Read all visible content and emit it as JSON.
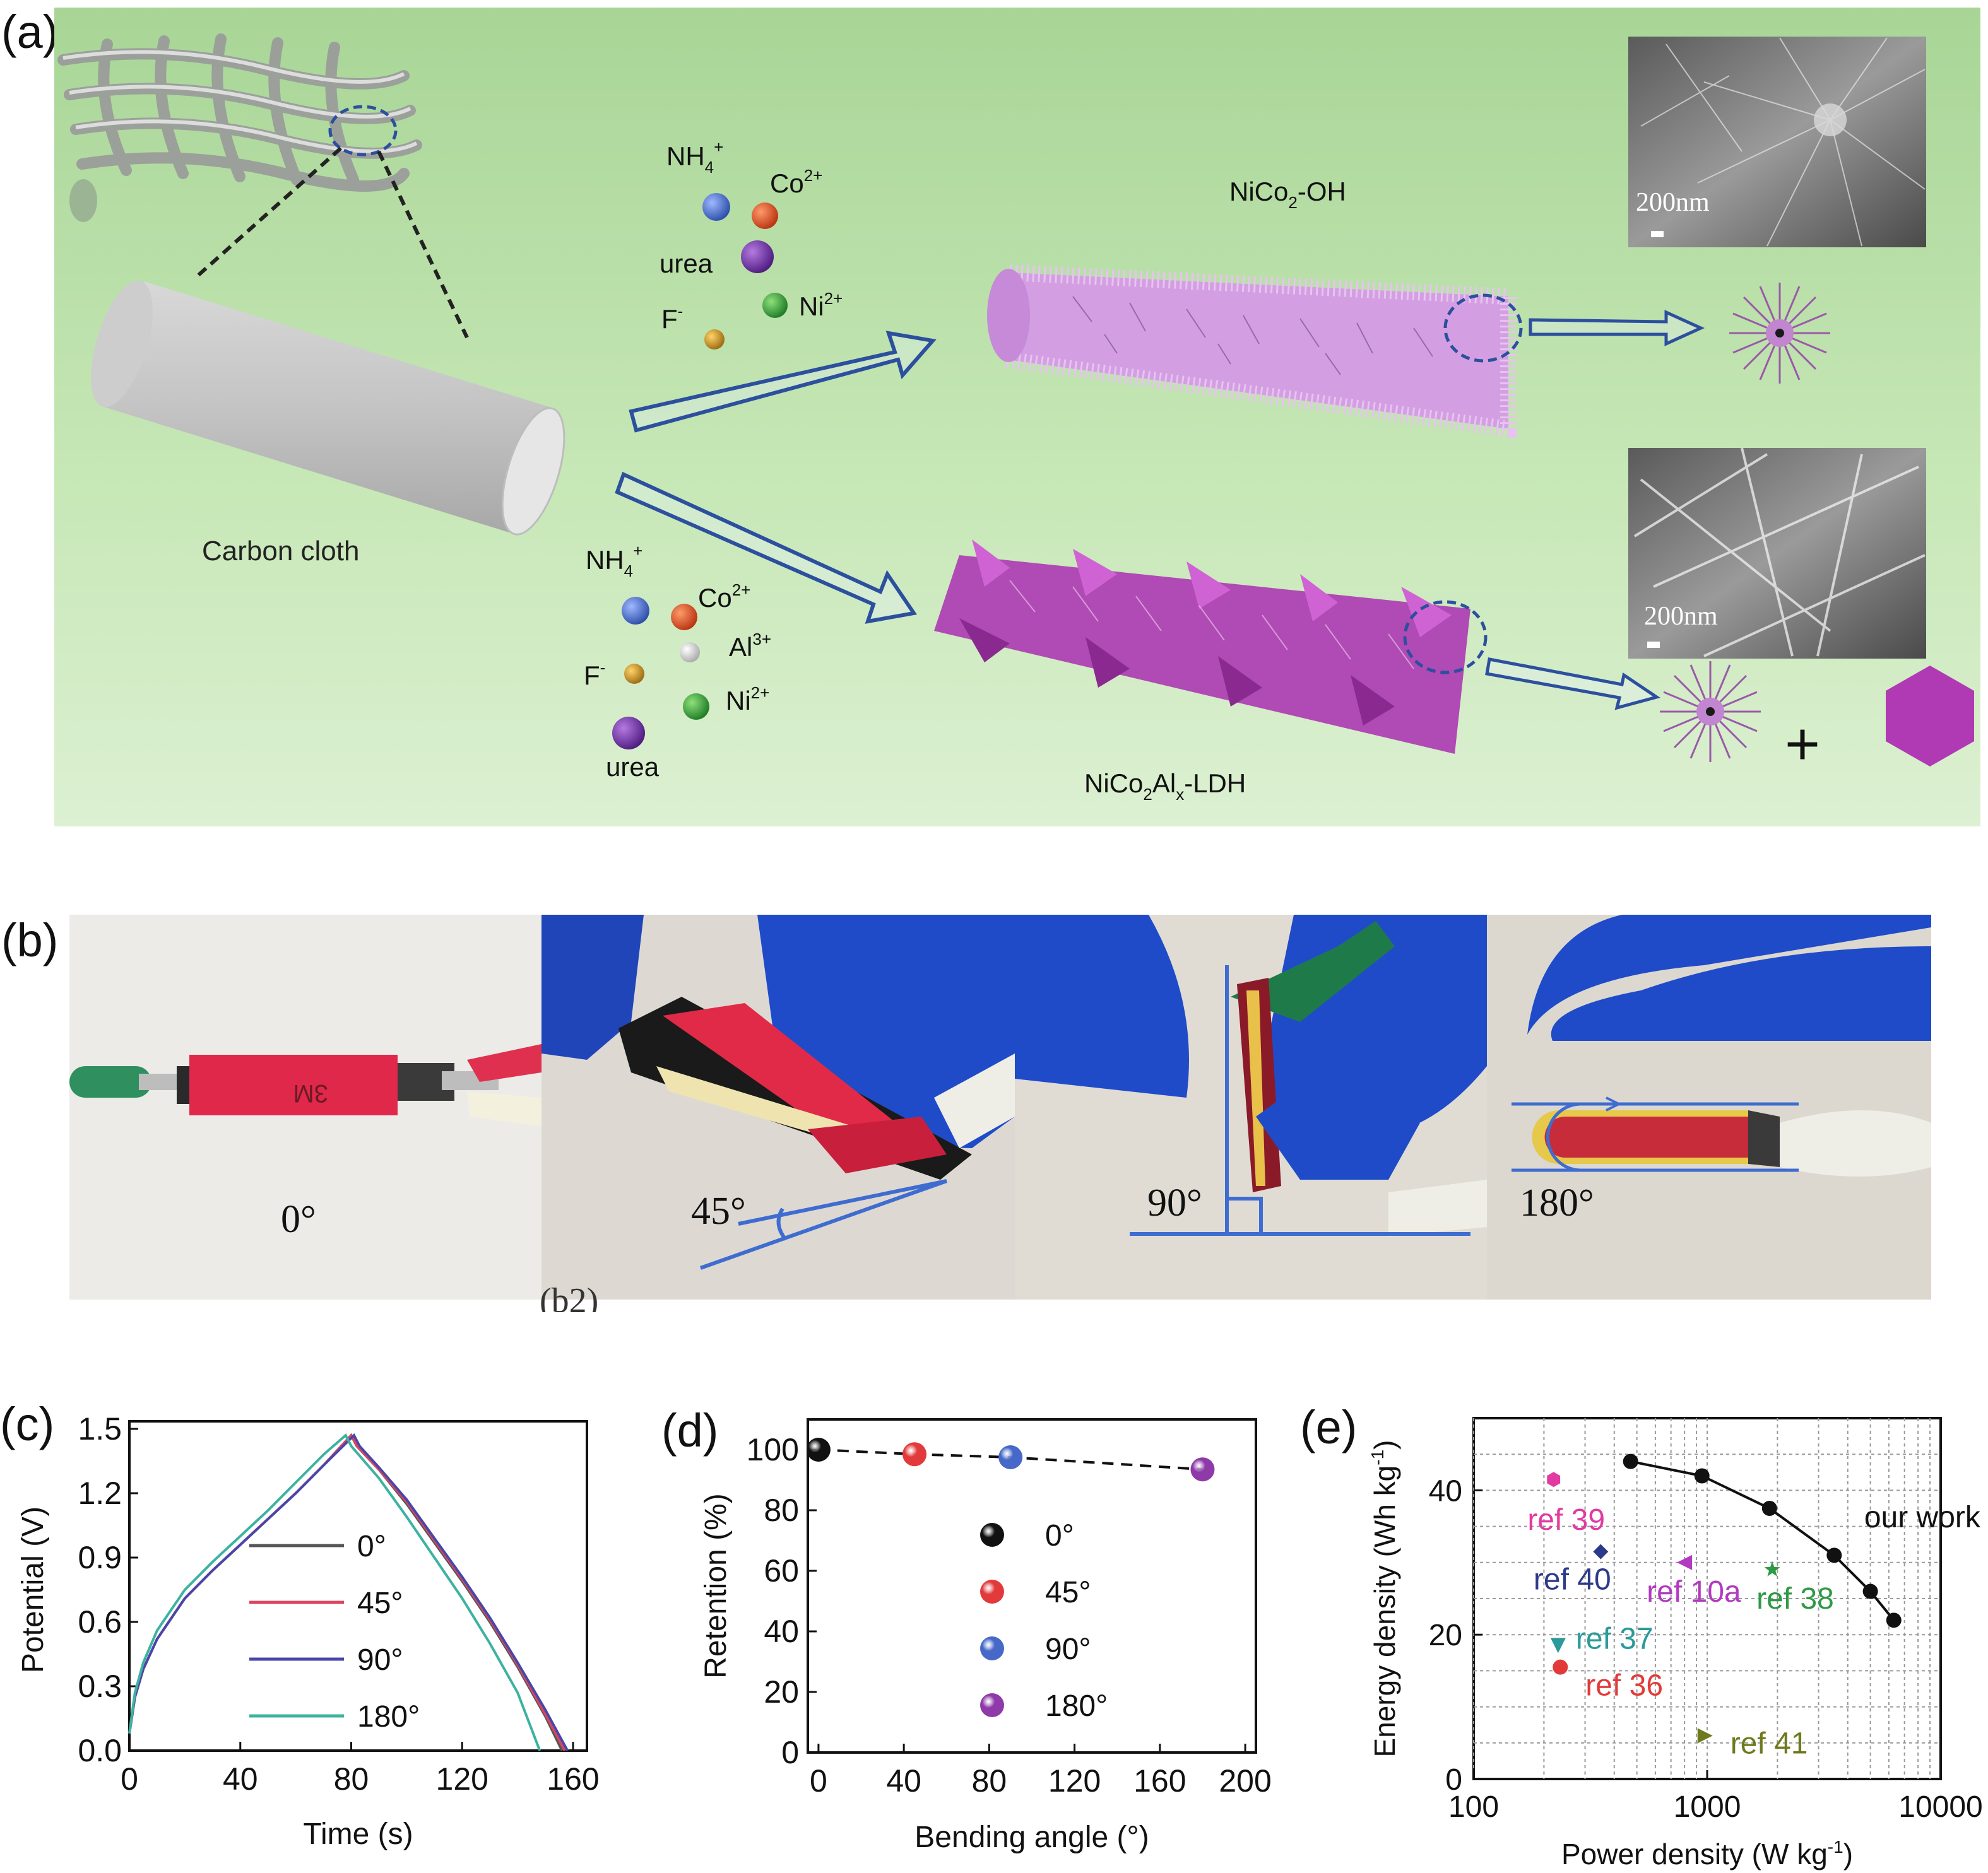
{
  "panels": {
    "a": "(a)",
    "b": "(b)",
    "c": "(c)",
    "d": "(d)",
    "e": "(e)"
  },
  "schematic": {
    "carbon_cloth": "Carbon cloth",
    "top_ions": [
      "NH4+",
      "Co2+",
      "urea",
      "F-",
      "Ni2+"
    ],
    "bottom_ions": [
      "NH4+",
      "Co2+",
      "Al3+",
      "F-",
      "Ni2+",
      "urea"
    ],
    "product_top": "NiCo2-OH",
    "product_bottom": "NiCo2Alx-LDH",
    "sem_scale_top": "200nm",
    "sem_scale_bottom": "200nm",
    "plus": "+",
    "colors": {
      "nh4": "#3d63c4",
      "co": "#d9481e",
      "urea": "#6a2aa0",
      "f": "#c9921b",
      "ni": "#2e9a35",
      "al": "#e8e8e8",
      "top_rod": "#cf9be0",
      "bottom_rod": "#b540b5",
      "arrow": "#2c4f9e",
      "background": "#b8dfa4"
    }
  },
  "photos": {
    "angles": [
      "0°",
      "45°",
      "90°",
      "180°"
    ],
    "stray_caption": "(b2)"
  },
  "chart_data": [
    {
      "panel": "c",
      "type": "line",
      "xlabel": "Time (s)",
      "ylabel": "Potential (V)",
      "xlim": [
        0,
        165
      ],
      "ylim": [
        0,
        1.5
      ],
      "xticks": [
        0,
        40,
        80,
        120,
        160
      ],
      "yticks": [
        "0.0",
        "0.3",
        "0.6",
        "0.9",
        "1.2",
        "1.5"
      ],
      "legend_position": "center",
      "series": [
        {
          "name": "0°",
          "color": "#555555",
          "x": [
            0,
            2,
            5,
            10,
            20,
            30,
            40,
            50,
            60,
            70,
            80,
            82,
            90,
            100,
            110,
            120,
            130,
            140,
            150,
            156
          ],
          "y": [
            0.08,
            0.25,
            0.38,
            0.52,
            0.71,
            0.84,
            0.96,
            1.08,
            1.2,
            1.33,
            1.47,
            1.42,
            1.31,
            1.15,
            0.97,
            0.79,
            0.6,
            0.39,
            0.16,
            0.0
          ]
        },
        {
          "name": "45°",
          "color": "#d9465f",
          "x": [
            0,
            2,
            5,
            10,
            20,
            30,
            40,
            50,
            60,
            70,
            80,
            82,
            90,
            100,
            110,
            120,
            130,
            140,
            150,
            157
          ],
          "y": [
            0.08,
            0.25,
            0.38,
            0.52,
            0.71,
            0.84,
            0.96,
            1.08,
            1.2,
            1.33,
            1.47,
            1.42,
            1.31,
            1.16,
            0.98,
            0.8,
            0.61,
            0.4,
            0.17,
            0.0
          ]
        },
        {
          "name": "90°",
          "color": "#4a46a8",
          "x": [
            0,
            2,
            5,
            10,
            20,
            30,
            40,
            50,
            60,
            70,
            81,
            83,
            90,
            100,
            110,
            120,
            130,
            140,
            150,
            158
          ],
          "y": [
            0.08,
            0.25,
            0.38,
            0.52,
            0.71,
            0.84,
            0.96,
            1.08,
            1.2,
            1.33,
            1.47,
            1.42,
            1.32,
            1.17,
            0.99,
            0.81,
            0.62,
            0.41,
            0.19,
            0.0
          ]
        },
        {
          "name": "180°",
          "color": "#3bb3a0",
          "x": [
            0,
            2,
            5,
            10,
            20,
            30,
            40,
            50,
            60,
            70,
            78,
            80,
            90,
            100,
            110,
            120,
            130,
            140,
            148
          ],
          "y": [
            0.08,
            0.27,
            0.41,
            0.56,
            0.75,
            0.88,
            1.0,
            1.12,
            1.25,
            1.38,
            1.47,
            1.42,
            1.27,
            1.09,
            0.9,
            0.71,
            0.5,
            0.27,
            0.0
          ]
        }
      ]
    },
    {
      "panel": "d",
      "type": "scatter",
      "xlabel": "Bending angle (°)",
      "ylabel": "Retention (%)",
      "xlim": [
        -5,
        205
      ],
      "ylim": [
        0,
        110
      ],
      "xticks": [
        0,
        40,
        80,
        120,
        160,
        200
      ],
      "yticks": [
        0,
        20,
        40,
        60,
        80,
        100
      ],
      "legend_position": "center",
      "series": [
        {
          "name": "0°",
          "color": "#111111",
          "x": [
            0
          ],
          "y": [
            100
          ]
        },
        {
          "name": "45°",
          "color": "#e23a3a",
          "x": [
            45
          ],
          "y": [
            98.5
          ]
        },
        {
          "name": "90°",
          "color": "#4668c8",
          "x": [
            90
          ],
          "y": [
            97.5
          ]
        },
        {
          "name": "180°",
          "color": "#8e3aa8",
          "x": [
            180
          ],
          "y": [
            93.5
          ]
        }
      ]
    },
    {
      "panel": "e",
      "type": "scatter",
      "xlabel": "Power density (W kg-1)",
      "ylabel": "Energy density (Wh kg-1)",
      "xscale": "log",
      "xlim": [
        100,
        10000
      ],
      "ylim": [
        0,
        50
      ],
      "xticks": [
        "100",
        "1000",
        "10000"
      ],
      "yticks": [
        "0",
        "20",
        "40"
      ],
      "grid": true,
      "series": [
        {
          "name": "our work",
          "color": "#111111",
          "marker": "circle",
          "connected": true,
          "x": [
            470,
            950,
            1850,
            3500,
            5000,
            6300
          ],
          "y": [
            44,
            42,
            37.5,
            31,
            26,
            22
          ]
        },
        {
          "name": "ref 39",
          "color": "#e23aa0",
          "marker": "hexagon",
          "x": [
            220
          ],
          "y": [
            41.5
          ]
        },
        {
          "name": "ref 40",
          "color": "#2d3a8c",
          "marker": "diamond",
          "x": [
            350
          ],
          "y": [
            31.5
          ]
        },
        {
          "name": "ref 10a",
          "color": "#b23ac0",
          "marker": "triangle-left",
          "x": [
            800
          ],
          "y": [
            30
          ]
        },
        {
          "name": "ref 38",
          "color": "#2e9a45",
          "marker": "star",
          "x": [
            1900
          ],
          "y": [
            29
          ]
        },
        {
          "name": "ref 37",
          "color": "#2b9a9a",
          "marker": "triangle-down",
          "x": [
            230
          ],
          "y": [
            18.5
          ]
        },
        {
          "name": "ref 36",
          "color": "#e23a3a",
          "marker": "circle",
          "x": [
            235
          ],
          "y": [
            15.5
          ]
        },
        {
          "name": "ref 41",
          "color": "#6f7a1d",
          "marker": "triangle-right",
          "x": [
            980
          ],
          "y": [
            6
          ]
        }
      ]
    }
  ]
}
